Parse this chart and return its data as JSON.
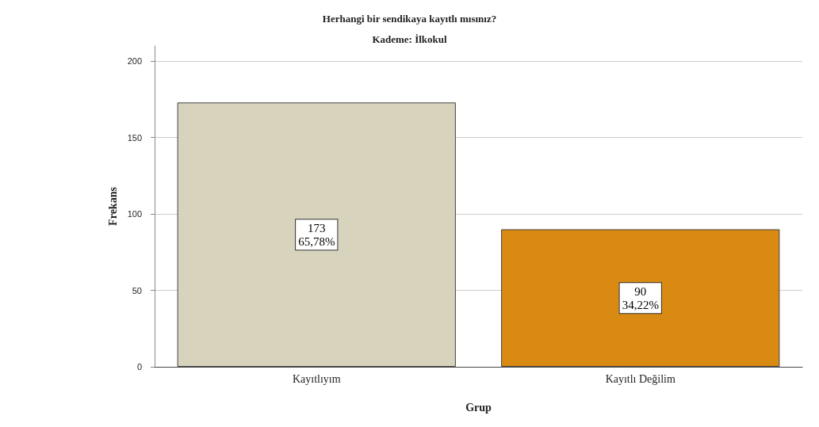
{
  "chart_data": {
    "type": "bar",
    "title": "Herhangi bir sendikaya kayıtlı mısınız?",
    "subtitle": "Kademe: İlkokul",
    "xlabel": "Grup",
    "ylabel": "Frekans",
    "categories": [
      "Kayıtlıyım",
      "Kayıtlı Değilim"
    ],
    "values": [
      173,
      90
    ],
    "colors": [
      "#d8d3bd",
      "#d98a12"
    ],
    "value_labels": [
      "173\n65,78%",
      "90\n34,22%"
    ],
    "ylim": [
      0,
      210
    ],
    "yticks": [
      0,
      50,
      100,
      150,
      200
    ],
    "grid": "y"
  }
}
